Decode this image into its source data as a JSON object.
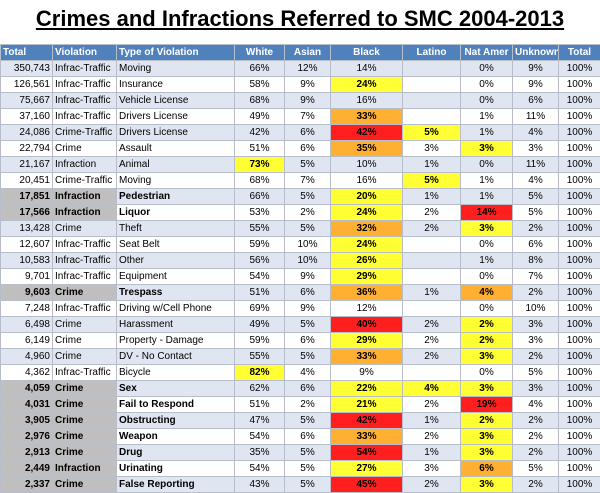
{
  "title": "Crimes and Infractions Referred to SMC  2004-2013",
  "columns": [
    "Total",
    "Violation",
    "Type of Violation",
    "White",
    "Asian",
    "Black",
    "Latino",
    "Nat Amer",
    "Unknown",
    "Total"
  ],
  "rows": [
    {
      "total": "350,743",
      "violation": "Infrac-Traffic",
      "type": "Moving",
      "white": "66%",
      "asian": "12%",
      "black": "14%",
      "latino": "",
      "natamer": "0%",
      "unknown": "9%",
      "total2": "100%",
      "hl": false,
      "c": {}
    },
    {
      "total": "126,561",
      "violation": "Infrac-Traffic",
      "type": "Insurance",
      "white": "58%",
      "asian": "9%",
      "black": "24%",
      "latino": "",
      "natamer": "0%",
      "unknown": "9%",
      "total2": "100%",
      "hl": false,
      "c": {
        "black": "y"
      }
    },
    {
      "total": "75,667",
      "violation": "Infrac-Traffic",
      "type": "Vehicle License",
      "white": "68%",
      "asian": "9%",
      "black": "16%",
      "latino": "",
      "natamer": "0%",
      "unknown": "6%",
      "total2": "100%",
      "hl": false,
      "c": {}
    },
    {
      "total": "37,160",
      "violation": "Infrac-Traffic",
      "type": "Drivers License",
      "white": "49%",
      "asian": "7%",
      "black": "33%",
      "latino": "",
      "natamer": "1%",
      "unknown": "11%",
      "total2": "100%",
      "hl": false,
      "c": {
        "black": "o"
      }
    },
    {
      "total": "24,086",
      "violation": "Crime-Traffic",
      "type": "Drivers License",
      "white": "42%",
      "asian": "6%",
      "black": "42%",
      "latino": "5%",
      "natamer": "1%",
      "unknown": "4%",
      "total2": "100%",
      "hl": false,
      "c": {
        "black": "rd",
        "latino": "y"
      }
    },
    {
      "total": "22,794",
      "violation": "Crime",
      "type": "Assault",
      "white": "51%",
      "asian": "6%",
      "black": "35%",
      "latino": "3%",
      "natamer": "3%",
      "unknown": "3%",
      "total2": "100%",
      "hl": false,
      "c": {
        "black": "o",
        "natamer": "y"
      }
    },
    {
      "total": "21,167",
      "violation": "Infraction",
      "type": "Animal",
      "white": "73%",
      "asian": "5%",
      "black": "10%",
      "latino": "1%",
      "natamer": "0%",
      "unknown": "11%",
      "total2": "100%",
      "hl": false,
      "c": {
        "white": "y"
      }
    },
    {
      "total": "20,451",
      "violation": "Crime-Traffic",
      "type": "Moving",
      "white": "68%",
      "asian": "7%",
      "black": "16%",
      "latino": "5%",
      "natamer": "1%",
      "unknown": "4%",
      "total2": "100%",
      "hl": false,
      "c": {
        "latino": "y"
      }
    },
    {
      "total": "17,851",
      "violation": "Infraction",
      "type": "Pedestrian",
      "white": "66%",
      "asian": "5%",
      "black": "20%",
      "latino": "1%",
      "natamer": "1%",
      "unknown": "5%",
      "total2": "100%",
      "hl": true,
      "c": {
        "black": "y"
      }
    },
    {
      "total": "17,566",
      "violation": "Infraction",
      "type": "Liquor",
      "white": "53%",
      "asian": "2%",
      "black": "24%",
      "latino": "2%",
      "natamer": "14%",
      "unknown": "5%",
      "total2": "100%",
      "hl": true,
      "c": {
        "black": "y",
        "natamer": "rd"
      }
    },
    {
      "total": "13,428",
      "violation": "Crime",
      "type": "Theft",
      "white": "55%",
      "asian": "5%",
      "black": "32%",
      "latino": "2%",
      "natamer": "3%",
      "unknown": "2%",
      "total2": "100%",
      "hl": false,
      "c": {
        "black": "o",
        "natamer": "y"
      }
    },
    {
      "total": "12,607",
      "violation": "Infrac-Traffic",
      "type": "Seat Belt",
      "white": "59%",
      "asian": "10%",
      "black": "24%",
      "latino": "",
      "natamer": "0%",
      "unknown": "6%",
      "total2": "100%",
      "hl": false,
      "c": {
        "black": "y"
      }
    },
    {
      "total": "10,583",
      "violation": "Infrac-Traffic",
      "type": "Other",
      "white": "56%",
      "asian": "10%",
      "black": "26%",
      "latino": "",
      "natamer": "1%",
      "unknown": "8%",
      "total2": "100%",
      "hl": false,
      "c": {
        "black": "y"
      }
    },
    {
      "total": "9,701",
      "violation": "Infrac-Traffic",
      "type": "Equipment",
      "white": "54%",
      "asian": "9%",
      "black": "29%",
      "latino": "",
      "natamer": "0%",
      "unknown": "7%",
      "total2": "100%",
      "hl": false,
      "c": {
        "black": "y"
      }
    },
    {
      "total": "9,603",
      "violation": "Crime",
      "type": "Trespass",
      "white": "51%",
      "asian": "6%",
      "black": "36%",
      "latino": "1%",
      "natamer": "4%",
      "unknown": "2%",
      "total2": "100%",
      "hl": true,
      "c": {
        "black": "o",
        "natamer": "o"
      }
    },
    {
      "total": "7,248",
      "violation": "Infrac-Traffic",
      "type": "Driving w/Cell Phone",
      "white": "69%",
      "asian": "9%",
      "black": "12%",
      "latino": "",
      "natamer": "0%",
      "unknown": "10%",
      "total2": "100%",
      "hl": false,
      "c": {}
    },
    {
      "total": "6,498",
      "violation": "Crime",
      "type": "Harassment",
      "white": "49%",
      "asian": "5%",
      "black": "40%",
      "latino": "2%",
      "natamer": "2%",
      "unknown": "3%",
      "total2": "100%",
      "hl": false,
      "c": {
        "black": "rd",
        "natamer": "y"
      }
    },
    {
      "total": "6,149",
      "violation": "Crime",
      "type": "Property - Damage",
      "white": "59%",
      "asian": "6%",
      "black": "29%",
      "latino": "2%",
      "natamer": "2%",
      "unknown": "3%",
      "total2": "100%",
      "hl": false,
      "c": {
        "black": "y",
        "natamer": "y"
      }
    },
    {
      "total": "4,960",
      "violation": "Crime",
      "type": "DV - No Contact",
      "white": "55%",
      "asian": "5%",
      "black": "33%",
      "latino": "2%",
      "natamer": "3%",
      "unknown": "2%",
      "total2": "100%",
      "hl": false,
      "c": {
        "black": "o",
        "natamer": "y"
      }
    },
    {
      "total": "4,362",
      "violation": "Infrac-Traffic",
      "type": "Bicycle",
      "white": "82%",
      "asian": "4%",
      "black": "9%",
      "latino": "",
      "natamer": "0%",
      "unknown": "5%",
      "total2": "100%",
      "hl": false,
      "c": {
        "white": "y"
      }
    },
    {
      "total": "4,059",
      "violation": "Crime",
      "type": "Sex",
      "white": "62%",
      "asian": "6%",
      "black": "22%",
      "latino": "4%",
      "natamer": "3%",
      "unknown": "3%",
      "total2": "100%",
      "hl": true,
      "c": {
        "black": "y",
        "latino": "y",
        "natamer": "y"
      }
    },
    {
      "total": "4,031",
      "violation": "Crime",
      "type": "Fail to Respond",
      "white": "51%",
      "asian": "2%",
      "black": "21%",
      "latino": "2%",
      "natamer": "19%",
      "unknown": "4%",
      "total2": "100%",
      "hl": true,
      "c": {
        "black": "y",
        "natamer": "rd"
      }
    },
    {
      "total": "3,905",
      "violation": "Crime",
      "type": "Obstructing",
      "white": "47%",
      "asian": "5%",
      "black": "42%",
      "latino": "1%",
      "natamer": "2%",
      "unknown": "2%",
      "total2": "100%",
      "hl": true,
      "c": {
        "black": "rd",
        "natamer": "y"
      }
    },
    {
      "total": "2,976",
      "violation": "Crime",
      "type": "Weapon",
      "white": "54%",
      "asian": "6%",
      "black": "33%",
      "latino": "2%",
      "natamer": "3%",
      "unknown": "2%",
      "total2": "100%",
      "hl": true,
      "c": {
        "black": "o",
        "natamer": "y"
      }
    },
    {
      "total": "2,913",
      "violation": "Crime",
      "type": "Drug",
      "white": "35%",
      "asian": "5%",
      "black": "54%",
      "latino": "1%",
      "natamer": "3%",
      "unknown": "2%",
      "total2": "100%",
      "hl": true,
      "c": {
        "black": "rd",
        "natamer": "y"
      }
    },
    {
      "total": "2,449",
      "violation": "Infraction",
      "type": "Urinating",
      "white": "54%",
      "asian": "5%",
      "black": "27%",
      "latino": "3%",
      "natamer": "6%",
      "unknown": "5%",
      "total2": "100%",
      "hl": true,
      "c": {
        "black": "y",
        "natamer": "o"
      }
    },
    {
      "total": "2,337",
      "violation": "Crime",
      "type": "False Reporting",
      "white": "43%",
      "asian": "5%",
      "black": "45%",
      "latino": "2%",
      "natamer": "3%",
      "unknown": "2%",
      "total2": "100%",
      "hl": true,
      "c": {
        "black": "rd",
        "natamer": "y"
      }
    }
  ],
  "colors": {
    "header": "#4f81bd",
    "stripe": "#dfe6f1",
    "highlight_gray": "#bfbfbf",
    "yellow": "#ffff33",
    "orange": "#ffb033",
    "red": "#ff1f1f"
  }
}
